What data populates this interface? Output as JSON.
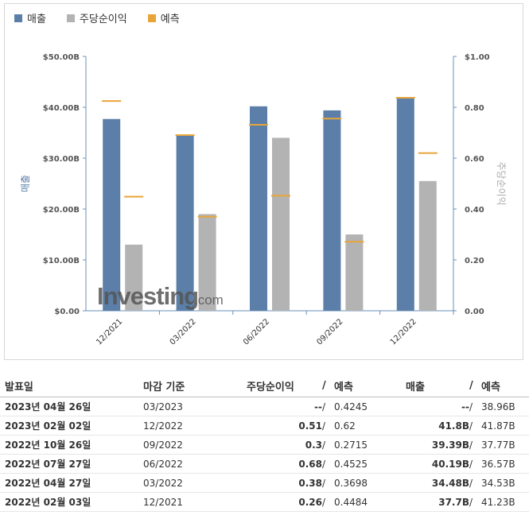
{
  "legend": [
    {
      "label": "매출",
      "color": "#5b7fa8"
    },
    {
      "label": "주당순이익",
      "color": "#b3b3b3"
    },
    {
      "label": "예측",
      "color": "#e8a53a"
    }
  ],
  "watermark": {
    "brand": "Investing",
    "suffix": ".com"
  },
  "chart_data": {
    "type": "bar",
    "categories": [
      "12/2021",
      "03/2022",
      "06/2022",
      "09/2022",
      "12/2022"
    ],
    "left_axis": {
      "label": "매출",
      "ticks": [
        "$0.00",
        "$10.00B",
        "$20.00B",
        "$30.00B",
        "$40.00B",
        "$50.00B"
      ],
      "ylim": [
        0,
        50
      ]
    },
    "right_axis": {
      "label": "주당순이익",
      "ticks": [
        "0.00",
        "0.20",
        "0.40",
        "0.60",
        "0.80",
        "$1.00"
      ],
      "ylim": [
        0,
        1
      ]
    },
    "series": [
      {
        "name": "매출",
        "axis": "left",
        "color": "#5b7fa8",
        "values": [
          37.7,
          34.48,
          40.19,
          39.39,
          41.8
        ]
      },
      {
        "name": "주당순이익",
        "axis": "right",
        "color": "#b3b3b3",
        "values": [
          0.26,
          0.38,
          0.68,
          0.3,
          0.51
        ]
      }
    ],
    "forecast": {
      "name": "예측",
      "color": "#e8a53a",
      "revenue": [
        41.23,
        34.53,
        36.57,
        37.77,
        41.87
      ],
      "eps": [
        0.4484,
        0.3698,
        0.4525,
        0.2715,
        0.62
      ]
    },
    "grid": false
  },
  "table": {
    "headers": {
      "date": "발표일",
      "period": "마감 기준",
      "eps": "주당순이익",
      "eps_fc": "예측",
      "rev": "매출",
      "rev_fc": "예측",
      "slash": "/"
    },
    "rows": [
      {
        "date": "2023년 04월 26일",
        "period": "03/2023",
        "eps": "--",
        "eps_fc": "0.4245",
        "rev": "--",
        "rev_fc": "38.96B",
        "eps_color": "plain",
        "rev_color": "plain"
      },
      {
        "date": "2023년 02월 02일",
        "period": "12/2022",
        "eps": "0.51",
        "eps_fc": "0.62",
        "rev": "41.8B",
        "rev_fc": "41.87B",
        "eps_color": "green",
        "rev_color": "green"
      },
      {
        "date": "2022년 10월 26일",
        "period": "09/2022",
        "eps": "0.3",
        "eps_fc": "0.2715",
        "rev": "39.39B",
        "rev_fc": "37.77B",
        "eps_color": "red",
        "rev_color": "red"
      },
      {
        "date": "2022년 07월 27일",
        "period": "06/2022",
        "eps": "0.68",
        "eps_fc": "0.4525",
        "rev": "40.19B",
        "rev_fc": "36.57B",
        "eps_color": "red",
        "rev_color": "red"
      },
      {
        "date": "2022년 04월 27일",
        "period": "03/2022",
        "eps": "0.38",
        "eps_fc": "0.3698",
        "rev": "34.48B",
        "rev_fc": "34.53B",
        "eps_color": "red",
        "rev_color": "green"
      },
      {
        "date": "2022년 02월 03일",
        "period": "12/2021",
        "eps": "0.26",
        "eps_fc": "0.4484",
        "rev": "37.7B",
        "rev_fc": "41.23B",
        "eps_color": "green",
        "rev_color": "green"
      }
    ]
  }
}
